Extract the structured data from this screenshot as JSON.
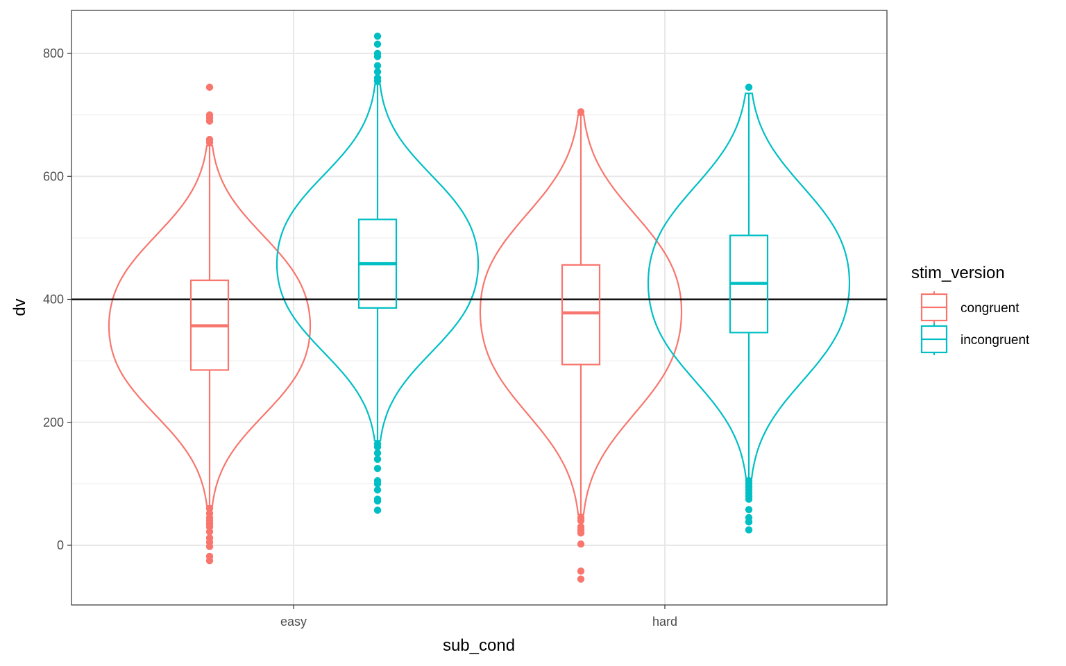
{
  "chart_data": {
    "type": "violin",
    "xlabel": "sub_cond",
    "ylabel": "dv",
    "categories": [
      "easy",
      "hard"
    ],
    "ylim": [
      -100,
      860
    ],
    "yticks": [
      0,
      200,
      400,
      600,
      800
    ],
    "grid": true,
    "reference_line": 400,
    "legend": {
      "title": "stim_version",
      "position": "right",
      "entries": [
        "congruent",
        "incongruent"
      ]
    },
    "series": [
      {
        "name": "congruent",
        "color": "#F8766D",
        "groups": [
          {
            "category": "easy",
            "box": {
              "q1": 285,
              "median": 357,
              "q3": 431,
              "whisker_low": 64,
              "whisker_high": 650
            },
            "violin_range": [
              64,
              650
            ],
            "outliers": [
              745,
              700,
              695,
              690,
              660,
              655,
              60,
              52,
              45,
              40,
              35,
              30,
              22,
              12,
              5,
              -2,
              -18,
              -25
            ]
          },
          {
            "category": "hard",
            "box": {
              "q1": 294,
              "median": 378,
              "q3": 456,
              "whisker_low": 50,
              "whisker_high": 700
            },
            "violin_range": [
              50,
              700
            ],
            "outliers": [
              705,
              45,
              40,
              30,
              25,
              20,
              2,
              -42,
              -55
            ]
          }
        ]
      },
      {
        "name": "incongruent",
        "color": "#00BFC4",
        "groups": [
          {
            "category": "easy",
            "box": {
              "q1": 386,
              "median": 458,
              "q3": 530,
              "whisker_low": 170,
              "whisker_high": 750
            },
            "violin_range": [
              170,
              750
            ],
            "outliers": [
              828,
              815,
              800,
              795,
              780,
              770,
              760,
              755,
              165,
              160,
              150,
              140,
              125,
              105,
              100,
              90,
              75,
              72,
              57
            ]
          },
          {
            "category": "hard",
            "box": {
              "q1": 346,
              "median": 426,
              "q3": 504,
              "whisker_low": 108,
              "whisker_high": 735
            },
            "violin_range": [
              108,
              735
            ],
            "outliers": [
              745,
              105,
              100,
              95,
              90,
              85,
              80,
              75,
              58,
              45,
              38,
              25
            ]
          }
        ]
      }
    ]
  }
}
